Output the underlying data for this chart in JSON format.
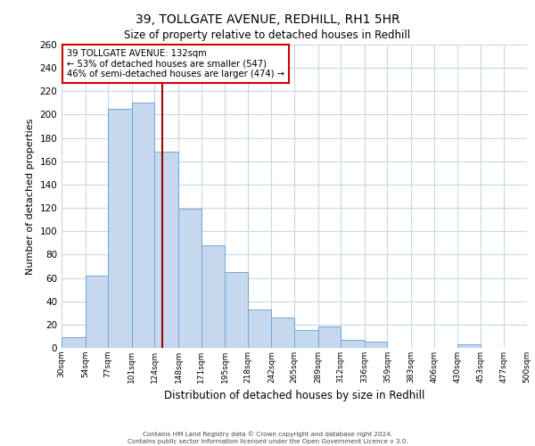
{
  "title1": "39, TOLLGATE AVENUE, REDHILL, RH1 5HR",
  "title2": "Size of property relative to detached houses in Redhill",
  "xlabel": "Distribution of detached houses by size in Redhill",
  "ylabel": "Number of detached properties",
  "bin_labels": [
    "30sqm",
    "54sqm",
    "77sqm",
    "101sqm",
    "124sqm",
    "148sqm",
    "171sqm",
    "195sqm",
    "218sqm",
    "242sqm",
    "265sqm",
    "289sqm",
    "312sqm",
    "336sqm",
    "359sqm",
    "383sqm",
    "406sqm",
    "430sqm",
    "453sqm",
    "477sqm",
    "500sqm"
  ],
  "bar_values": [
    9,
    62,
    205,
    210,
    168,
    119,
    88,
    65,
    33,
    26,
    15,
    18,
    7,
    5,
    0,
    0,
    0,
    3,
    0,
    0,
    0
  ],
  "bar_color": "#c5d8ed",
  "bar_edge_color": "#6fa8d4",
  "grid_color": "#c8d8e8",
  "background_color": "#ffffff",
  "vline_x": 132,
  "vline_color": "#a00000",
  "annotation_title": "39 TOLLGATE AVENUE: 132sqm",
  "annotation_line1": "← 53% of detached houses are smaller (547)",
  "annotation_line2": "46% of semi-detached houses are larger (474) →",
  "annotation_box_color": "#ffffff",
  "annotation_box_edge_color": "#cc0000",
  "footer1": "Contains HM Land Registry data © Crown copyright and database right 2024.",
  "footer2": "Contains public sector information licensed under the Open Government Licence v 3.0.",
  "bin_edges": [
    30,
    54,
    77,
    101,
    124,
    148,
    171,
    195,
    218,
    242,
    265,
    289,
    312,
    336,
    359,
    383,
    406,
    430,
    453,
    477,
    500
  ],
  "ylim": [
    0,
    260
  ],
  "yticks": [
    0,
    20,
    40,
    60,
    80,
    100,
    120,
    140,
    160,
    180,
    200,
    220,
    240,
    260
  ]
}
